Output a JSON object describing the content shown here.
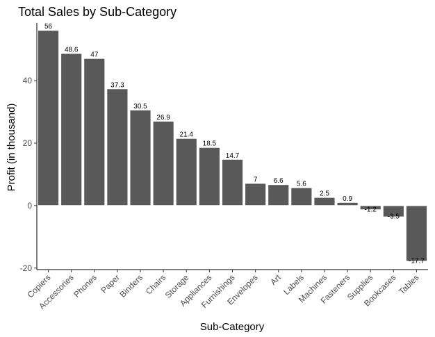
{
  "chart_data": {
    "type": "bar",
    "title": "Total Sales by Sub-Category",
    "xlabel": "Sub-Category",
    "ylabel": "Profit (in thousand)",
    "categories": [
      "Copiers",
      "Accessories",
      "Phones",
      "Paper",
      "Binders",
      "Chairs",
      "Storage",
      "Appliances",
      "Furnishings",
      "Envelopes",
      "Art",
      "Labels",
      "Machines",
      "Fasteners",
      "Supplies",
      "Bookcases",
      "Tables"
    ],
    "values": [
      56,
      48.6,
      47,
      37.3,
      30.5,
      26.9,
      21.4,
      18.5,
      14.7,
      7,
      6.6,
      5.6,
      2.5,
      0.9,
      -1.2,
      -3.5,
      -17.7
    ],
    "value_labels": [
      "56",
      "48.6",
      "47",
      "37.3",
      "30.5",
      "26.9",
      "21.4",
      "18.5",
      "14.7",
      "7",
      "6.6",
      "5.6",
      "2.5",
      "0.9",
      "-1.2",
      "-3.5",
      "-17.7"
    ],
    "yticks": [
      -20,
      0,
      20,
      40
    ],
    "ytick_labels": [
      "-20",
      "0",
      "20",
      "40"
    ],
    "ylim": [
      -20.5,
      58.5
    ],
    "grid": false,
    "legend": "none",
    "bar_color": "#595959",
    "zero_line_color": "#ffffff"
  }
}
